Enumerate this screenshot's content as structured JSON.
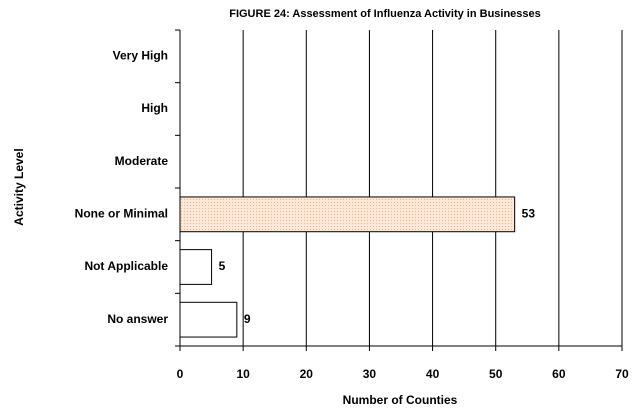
{
  "chart_data": {
    "type": "bar",
    "orientation": "horizontal",
    "title": "FIGURE 24: Assessment of Influenza Activity in Businesses",
    "x_label": "Number of Counties",
    "y_label": "Activity Level",
    "categories": [
      "Very High",
      "High",
      "Moderate",
      "None or Minimal",
      "Not Applicable",
      "No answer"
    ],
    "values": [
      0,
      0,
      0,
      53,
      5,
      9
    ],
    "colors": [
      "#ffffff",
      "#ffffff",
      "#ffffff",
      "#fde4d0",
      "#ffffff",
      "#ffffff"
    ],
    "xlim": [
      0,
      70
    ],
    "xticks": [
      0,
      10,
      20,
      30,
      40,
      50,
      60,
      70
    ],
    "grid": true
  }
}
